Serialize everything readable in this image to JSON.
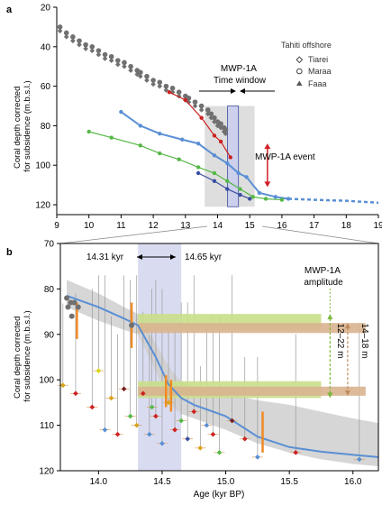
{
  "colors": {
    "gray_points": "#707070",
    "line_blue": "#5a8fd4",
    "line_red": "#cc2222",
    "line_green": "#55b846",
    "line_navy": "#3a4fa0",
    "highlight_box": "#d8d8d8",
    "time_window": "#ccd0ec",
    "arrow_red": "#d21f26",
    "green_bar": "#c9df8a",
    "tan_bar": "#d9b48f",
    "orange_bar": "#f08a24",
    "errorbar_gray": "#999999",
    "band_gray": "#cfcfcf"
  },
  "chart_data": [
    {
      "type": "scatter",
      "panel_label": "a",
      "ylabel": "Coral depth corrected for subsidence (m.b.s.l.)",
      "xlim": [
        9,
        19
      ],
      "ylim": [
        20,
        125
      ],
      "y_inverted": true,
      "xticks": [
        "9",
        "10",
        "11",
        "12",
        "13",
        "14",
        "15",
        "16",
        "17",
        "18",
        "19"
      ],
      "yticks": [
        "20",
        "40",
        "60",
        "80",
        "100",
        "120"
      ],
      "legend": {
        "title": "Tahiti offshore",
        "position": "top-right",
        "entries": [
          {
            "label": "Tiarei",
            "marker": "diamond"
          },
          {
            "label": "Maraa",
            "marker": "circle"
          },
          {
            "label": "Faaa",
            "marker": "triangle"
          }
        ]
      },
      "annotations": {
        "time_window": "MWP-1A\nTime window",
        "event": "MWP-1A event"
      },
      "highlight_box": {
        "x": [
          13.6,
          15.15
        ],
        "y": [
          70,
          121
        ]
      },
      "time_window_box": {
        "x": [
          14.31,
          14.65
        ]
      },
      "series": [
        {
          "name": "",
          "color": "gray_points",
          "points": [
            [
              9.1,
              30
            ],
            [
              9.3,
              33
            ],
            [
              9.5,
              35
            ],
            [
              9.7,
              37
            ],
            [
              9.9,
              39
            ],
            [
              10.1,
              40
            ],
            [
              10.3,
              42
            ],
            [
              10.5,
              44
            ],
            [
              10.7,
              45
            ],
            [
              10.9,
              47
            ],
            [
              11.1,
              48
            ],
            [
              11.3,
              50
            ],
            [
              11.5,
              52
            ],
            [
              11.6,
              53
            ],
            [
              11.8,
              55
            ],
            [
              12.0,
              57
            ],
            [
              12.2,
              58
            ],
            [
              12.4,
              60
            ],
            [
              12.6,
              61
            ],
            [
              12.8,
              63
            ],
            [
              13.0,
              65
            ],
            [
              13.1,
              66
            ],
            [
              13.3,
              68
            ],
            [
              13.5,
              70
            ],
            [
              13.7,
              72
            ],
            [
              13.8,
              74
            ],
            [
              13.9,
              76
            ],
            [
              14.0,
              78
            ],
            [
              14.1,
              79
            ],
            [
              14.2,
              81
            ],
            [
              14.25,
              82
            ]
          ]
        },
        {
          "name": "",
          "color": "line_blue",
          "points": [
            [
              11.0,
              73
            ],
            [
              11.6,
              80
            ],
            [
              12.2,
              84
            ],
            [
              12.9,
              87
            ],
            [
              13.4,
              89
            ],
            [
              13.9,
              95
            ],
            [
              14.3,
              99
            ],
            [
              14.65,
              104
            ],
            [
              14.9,
              106
            ],
            [
              15.3,
              114
            ],
            [
              15.8,
              116
            ],
            [
              16.2,
              117
            ]
          ]
        },
        {
          "name": "",
          "color": "line_red",
          "points": [
            [
              12.5,
              63
            ],
            [
              13.0,
              67
            ],
            [
              13.5,
              76
            ],
            [
              13.9,
              85
            ],
            [
              14.1,
              88
            ],
            [
              14.4,
              96
            ]
          ]
        },
        {
          "name": "",
          "color": "line_green",
          "points": [
            [
              10.0,
              83
            ],
            [
              10.7,
              86
            ],
            [
              11.6,
              90
            ],
            [
              12.2,
              94
            ],
            [
              12.8,
              97
            ],
            [
              13.4,
              101
            ],
            [
              13.9,
              104
            ],
            [
              14.3,
              108
            ],
            [
              14.7,
              112
            ],
            [
              15.1,
              116
            ],
            [
              15.5,
              117
            ],
            [
              16.0,
              117.5
            ]
          ]
        },
        {
          "name": "",
          "color": "line_navy",
          "points": [
            [
              13.4,
              104
            ],
            [
              13.9,
              108
            ],
            [
              14.3,
              112
            ],
            [
              14.7,
              115
            ],
            [
              15.0,
              117
            ]
          ]
        }
      ],
      "dashed_extension": {
        "color": "line_blue",
        "points": [
          [
            16.2,
            117
          ],
          [
            17.0,
            117.5
          ],
          [
            18.0,
            118
          ],
          [
            19.0,
            119
          ]
        ]
      },
      "event_arrow": {
        "x": 15.55,
        "y": [
          89,
          111
        ]
      }
    },
    {
      "type": "scatter",
      "panel_label": "b",
      "xlabel": "Age (kyr BP)",
      "ylabel": "Coral depth corrected for subsidence (m.b.s.l.)",
      "xlim": [
        13.7,
        16.2
      ],
      "ylim": [
        70,
        120
      ],
      "y_inverted": true,
      "xticks": [
        "14.0",
        "14.5",
        "15.0",
        "15.5",
        "16.0"
      ],
      "yticks": [
        "70",
        "80",
        "90",
        "100",
        "110",
        "120"
      ],
      "annotations": {
        "start_age": "14.31 kyr",
        "end_age": "14.65 kyr",
        "amplitude_title": "MWP-1A\namplitude",
        "range_green": "12–22 m",
        "range_tan": "14–18 m"
      },
      "time_window": [
        14.31,
        14.65
      ],
      "green_bars": [
        {
          "x": [
            14.31,
            15.75
          ],
          "y": [
            85.5,
            89.0
          ]
        },
        {
          "x": [
            14.31,
            15.75
          ],
          "y": [
            100.3,
            104.0
          ]
        }
      ],
      "tan_bars": [
        {
          "x": [
            14.31,
            16.1
          ],
          "y": [
            87.5,
            89.7
          ]
        },
        {
          "x": [
            14.31,
            16.1
          ],
          "y": [
            101.5,
            103.5
          ]
        }
      ],
      "green_bracket": {
        "x": 15.82,
        "y": [
          85.5,
          104.0
        ]
      },
      "tan_bracket": {
        "x": 16.1,
        "y": [
          87.5,
          103.5
        ]
      },
      "sea_level_curve": {
        "x": [
          13.75,
          14.0,
          14.2,
          14.31,
          14.45,
          14.55,
          14.65,
          14.75,
          15.0,
          15.25,
          15.5,
          15.75,
          16.0,
          16.2
        ],
        "y": [
          81.5,
          84.0,
          86.5,
          88.0,
          95.0,
          101.0,
          104.0,
          105.5,
          108.0,
          112.5,
          114.8,
          115.8,
          116.5,
          117.0
        ]
      },
      "band_upper": [
        78,
        81,
        84,
        85.5,
        92,
        97,
        100.5,
        101.5,
        103,
        104.5,
        105.5,
        107,
        108.5,
        109.5
      ],
      "band_lower": [
        84,
        87,
        89,
        90,
        98,
        105,
        107.5,
        108.5,
        111,
        114,
        116,
        117.5,
        118.5,
        119
      ],
      "orange_bars": [
        {
          "x": 13.83,
          "y": [
            83,
            91
          ]
        },
        {
          "x": 14.26,
          "y": [
            83,
            93
          ]
        },
        {
          "x": 14.53,
          "y": [
            99,
            106
          ]
        },
        {
          "x": 14.57,
          "y": [
            100,
            107
          ]
        },
        {
          "x": 15.29,
          "y": [
            107,
            116
          ]
        }
      ],
      "gray_points": [
        [
          13.75,
          82
        ],
        [
          13.78,
          83
        ],
        [
          13.81,
          83
        ],
        [
          13.84,
          84
        ],
        [
          13.79,
          86
        ],
        [
          13.76,
          84
        ],
        [
          14.26,
          88
        ]
      ],
      "colored_points": [
        {
          "x": 13.72,
          "y": 101.2,
          "color": "#d9a21b"
        },
        {
          "x": 13.82,
          "y": 103,
          "color": "#cc2222"
        },
        {
          "x": 13.95,
          "y": 106,
          "color": "#cc2222"
        },
        {
          "x": 14.0,
          "y": 98,
          "color": "#d9d61b"
        },
        {
          "x": 14.05,
          "y": 111,
          "color": "#5a8fd4"
        },
        {
          "x": 14.1,
          "y": 104,
          "color": "#d9a21b"
        },
        {
          "x": 14.15,
          "y": 112,
          "color": "#cc2222"
        },
        {
          "x": 14.2,
          "y": 102,
          "color": "#7a1f1f"
        },
        {
          "x": 14.25,
          "y": 108,
          "color": "#55b846"
        },
        {
          "x": 14.3,
          "y": 110,
          "color": "#d9a21b"
        },
        {
          "x": 14.35,
          "y": 103,
          "color": "#cc2222"
        },
        {
          "x": 14.4,
          "y": 112,
          "color": "#5a8fd4"
        },
        {
          "x": 14.42,
          "y": 106,
          "color": "#55b846"
        },
        {
          "x": 14.45,
          "y": 108,
          "color": "#cc2222"
        },
        {
          "x": 14.5,
          "y": 114,
          "color": "#5a8fd4"
        },
        {
          "x": 14.55,
          "y": 105,
          "color": "#d9a21b"
        },
        {
          "x": 14.6,
          "y": 111,
          "color": "#cc2222"
        },
        {
          "x": 14.65,
          "y": 109,
          "color": "#55b846"
        },
        {
          "x": 14.7,
          "y": 113,
          "color": "#3a4fa0"
        },
        {
          "x": 14.75,
          "y": 107,
          "color": "#cc2222"
        },
        {
          "x": 14.8,
          "y": 115,
          "color": "#d9a21b"
        },
        {
          "x": 14.85,
          "y": 110,
          "color": "#5a8fd4"
        },
        {
          "x": 14.9,
          "y": 112,
          "color": "#cc2222"
        },
        {
          "x": 14.95,
          "y": 116,
          "color": "#55b846"
        },
        {
          "x": 15.05,
          "y": 109,
          "color": "#7a1f1f"
        },
        {
          "x": 15.15,
          "y": 113,
          "color": "#cc2222"
        },
        {
          "x": 15.25,
          "y": 117,
          "color": "#5a8fd4"
        },
        {
          "x": 15.55,
          "y": 116,
          "color": "#cc2222"
        },
        {
          "x": 16.05,
          "y": 117.5,
          "color": "#5a8fd4"
        }
      ]
    }
  ]
}
